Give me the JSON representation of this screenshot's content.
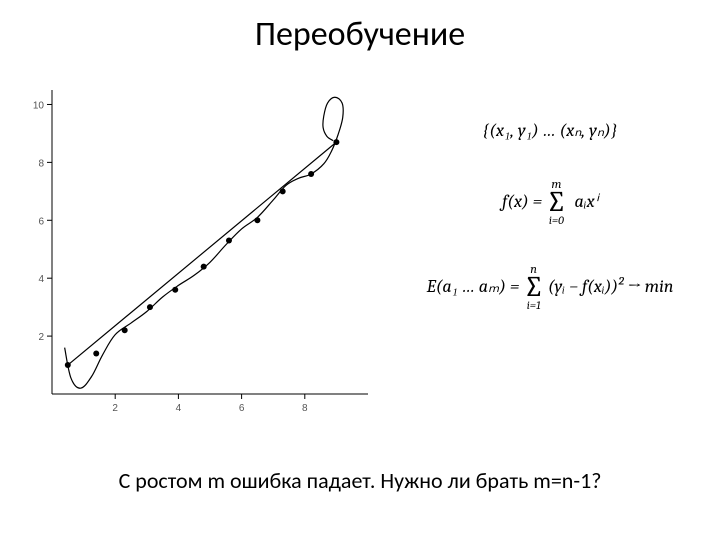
{
  "title": "Переобучение",
  "caption": "С ростом m ошибка падает. Нужно ли брать m=n-1?",
  "formula1": "{(x₁, y₁) … (xₙ, yₙ)}",
  "formula2_lhs": "f(x) = ",
  "formula2_sum_top": "m",
  "formula2_sum_bot": "i=0",
  "formula2_term": "aᵢxⁱ",
  "formula3_lhs": "E(a₁ … aₘ) = ",
  "formula3_sum_top": "n",
  "formula3_sum_bot": "i=1",
  "formula3_term": "(yᵢ − f(xᵢ))² → min",
  "chart": {
    "type": "line+scatter",
    "xlim": [
      0,
      10
    ],
    "ylim": [
      0,
      10.5
    ],
    "xticks": [
      2,
      4,
      6,
      8
    ],
    "yticks": [
      2,
      4,
      6,
      8,
      10
    ],
    "tick_fontsize": 10,
    "tick_color": "#555555",
    "axis_color": "#000000",
    "background_color": "#ffffff",
    "line_color": "#000000",
    "curve_color": "#000000",
    "marker_color": "#000000",
    "marker_radius": 3,
    "line_width": 1.2,
    "points": [
      [
        0.5,
        1.0
      ],
      [
        1.4,
        1.4
      ],
      [
        2.3,
        2.2
      ],
      [
        3.1,
        3.0
      ],
      [
        3.9,
        3.6
      ],
      [
        4.8,
        4.4
      ],
      [
        5.6,
        5.3
      ],
      [
        6.5,
        6.0
      ],
      [
        7.3,
        7.0
      ],
      [
        8.2,
        7.6
      ],
      [
        9.0,
        8.7
      ]
    ],
    "curve": [
      [
        0.4,
        1.6
      ],
      [
        0.6,
        0.55
      ],
      [
        0.9,
        0.2
      ],
      [
        1.25,
        0.6
      ],
      [
        1.6,
        1.35
      ],
      [
        2.0,
        2.05
      ],
      [
        2.5,
        2.45
      ],
      [
        3.0,
        2.85
      ],
      [
        3.5,
        3.35
      ],
      [
        4.0,
        3.75
      ],
      [
        4.5,
        4.1
      ],
      [
        5.0,
        4.55
      ],
      [
        5.5,
        5.15
      ],
      [
        6.0,
        5.7
      ],
      [
        6.5,
        6.1
      ],
      [
        7.0,
        6.7
      ],
      [
        7.4,
        7.2
      ],
      [
        7.8,
        7.45
      ],
      [
        8.2,
        7.6
      ],
      [
        8.6,
        7.95
      ],
      [
        8.85,
        8.4
      ],
      [
        9.05,
        8.95
      ],
      [
        9.2,
        9.55
      ],
      [
        9.18,
        10.05
      ],
      [
        8.95,
        10.25
      ],
      [
        8.72,
        10.05
      ],
      [
        8.6,
        9.6
      ],
      [
        8.58,
        9.2
      ],
      [
        8.7,
        8.9
      ],
      [
        8.9,
        8.75
      ]
    ]
  }
}
